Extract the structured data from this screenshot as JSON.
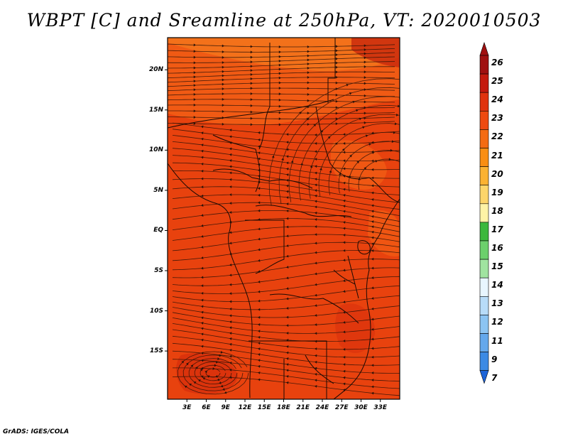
{
  "title": "WBPT [C] and Sreamline at 250hPa, VT: 2020010503",
  "credit": "GrADS: IGES/COLA",
  "map": {
    "lat_range": [
      -21,
      24
    ],
    "lon_range": [
      0,
      36
    ],
    "lat_ticks": [
      {
        "value": 20,
        "label": "20N"
      },
      {
        "value": 15,
        "label": "15N"
      },
      {
        "value": 10,
        "label": "10N"
      },
      {
        "value": 5,
        "label": "5N"
      },
      {
        "value": 0,
        "label": "EQ"
      },
      {
        "value": -5,
        "label": "5S"
      },
      {
        "value": -10,
        "label": "10S"
      },
      {
        "value": -15,
        "label": "15S"
      }
    ],
    "lon_ticks": [
      {
        "value": 3,
        "label": "3E"
      },
      {
        "value": 6,
        "label": "6E"
      },
      {
        "value": 9,
        "label": "9E"
      },
      {
        "value": 12,
        "label": "12E"
      },
      {
        "value": 15,
        "label": "15E"
      },
      {
        "value": 18,
        "label": "18E"
      },
      {
        "value": 21,
        "label": "21E"
      },
      {
        "value": 24,
        "label": "24E"
      },
      {
        "value": 27,
        "label": "27E"
      },
      {
        "value": 30,
        "label": "30E"
      },
      {
        "value": 33,
        "label": "33E"
      }
    ]
  },
  "colorbar": {
    "labels": [
      "26",
      "25",
      "24",
      "23",
      "22",
      "21",
      "20",
      "19",
      "18",
      "17",
      "16",
      "15",
      "14",
      "13",
      "12",
      "11",
      "9",
      "7"
    ],
    "colors": [
      "#a01010",
      "#c41a0e",
      "#e0330e",
      "#ee4a10",
      "#f46b12",
      "#f98e12",
      "#fbb232",
      "#fdd56a",
      "#fef3a6",
      "#3cb83c",
      "#6cd06c",
      "#a0e4a0",
      "#e8f6ff",
      "#b8dcf8",
      "#8cc4f2",
      "#64a8ec",
      "#3c8ae4",
      "#1c64d8"
    ]
  },
  "colors": {
    "field_base": "#e8420e",
    "field_north": "#f05a14",
    "field_warm": "#f47a1c",
    "field_dark": "#c8280c"
  }
}
